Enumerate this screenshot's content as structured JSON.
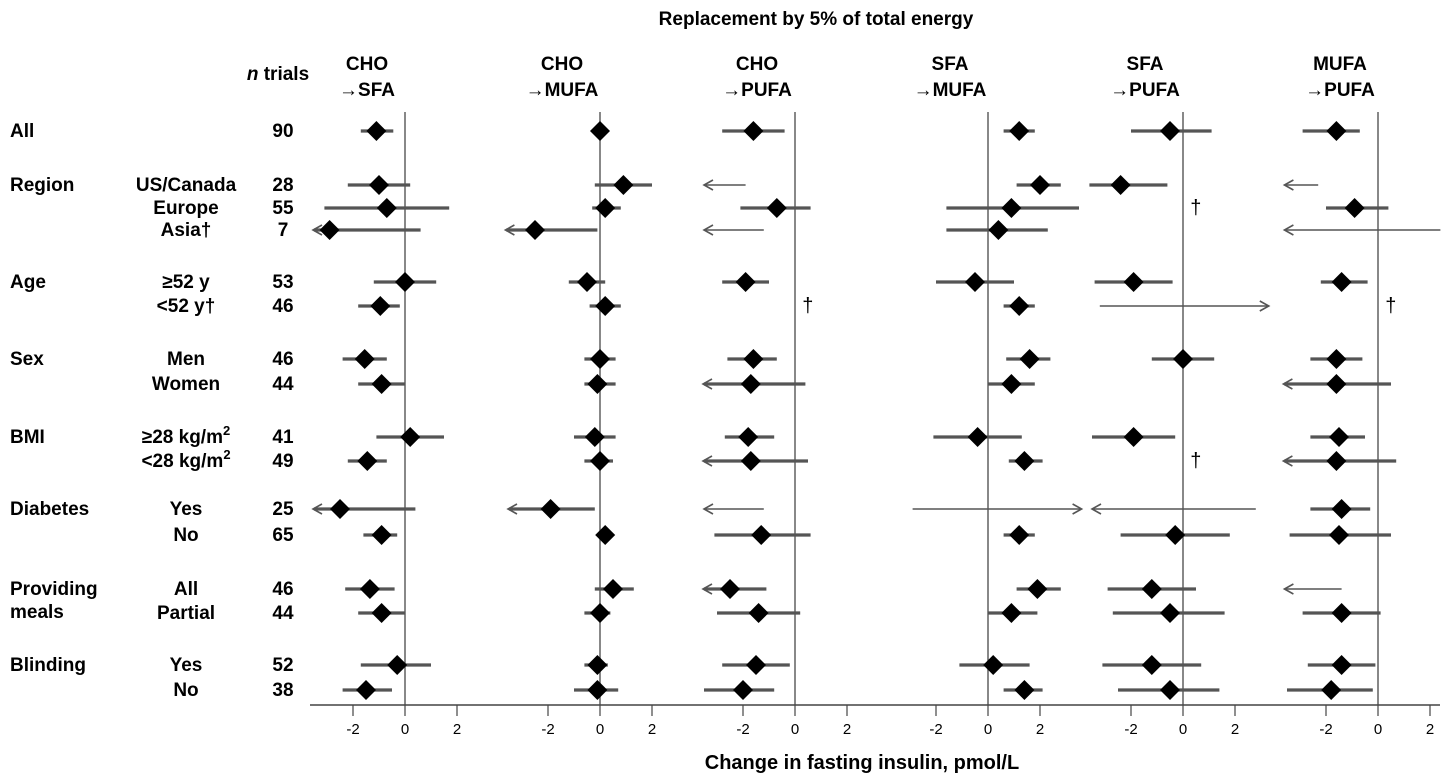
{
  "chart_data": {
    "type": "forest",
    "title": "Replacement by 5% of total energy",
    "xlabel": "Change in fasting insulin, pmol/L",
    "xticks": [
      -2,
      0,
      2
    ],
    "xlim": [
      -3.6,
      2.4
    ],
    "grid": false,
    "n_header": {
      "italic": "n",
      "rest": " trials"
    },
    "panels": [
      {
        "line1": "CHO",
        "line2": "→SFA"
      },
      {
        "line1": "CHO",
        "line2": "→MUFA"
      },
      {
        "line1": "CHO",
        "line2": "→PUFA"
      },
      {
        "line1": "SFA",
        "line2": "→MUFA"
      },
      {
        "line1": "SFA",
        "line2": "→PUFA"
      },
      {
        "line1": "MUFA",
        "line2": "→PUFA"
      }
    ],
    "groups": [
      {
        "label": "All",
        "rows": [
          {
            "sub": "",
            "sup": "",
            "n": "90",
            "est": [
              {
                "e": -1.1,
                "lo": -1.7,
                "hi": -0.45
              },
              {
                "e": 0.0,
                "lo": -0.2,
                "hi": 0.2
              },
              {
                "e": -1.6,
                "lo": -2.8,
                "hi": -0.4
              },
              {
                "e": 1.2,
                "lo": 0.6,
                "hi": 1.8
              },
              {
                "e": -0.5,
                "lo": -2.0,
                "hi": 1.1
              },
              {
                "e": -1.6,
                "lo": -2.9,
                "hi": -0.7
              }
            ]
          }
        ]
      },
      {
        "label": "Region",
        "rows": [
          {
            "sub": "US/Canada",
            "sup": "",
            "n": "28",
            "est": [
              {
                "e": -1.0,
                "lo": -2.2,
                "hi": 0.2
              },
              {
                "e": 0.9,
                "lo": -0.2,
                "hi": 2.0
              },
              {
                "arrow": "left",
                "from": -1.9,
                "to": -3.5
              },
              {
                "e": 2.0,
                "lo": 1.1,
                "hi": 2.8
              },
              {
                "e": -2.4,
                "lo": -3.6,
                "hi": -0.6
              },
              {
                "arrow": "left",
                "from": -2.3,
                "to": -3.6
              }
            ]
          },
          {
            "sub": "Europe",
            "sup": "",
            "n": "55",
            "est": [
              {
                "e": -0.7,
                "lo": -3.1,
                "hi": 1.7
              },
              {
                "e": 0.2,
                "lo": -0.3,
                "hi": 0.8
              },
              {
                "e": -0.7,
                "lo": -2.1,
                "hi": 0.6
              },
              {
                "e": 0.9,
                "lo": -1.6,
                "hi": 3.5
              },
              {
                "dagger": 0.3
              },
              {
                "e": -0.9,
                "lo": -2.0,
                "hi": 0.4
              }
            ]
          },
          {
            "sub": "Asia",
            "sup": "",
            "dagger": true,
            "n": "7",
            "est": [
              {
                "e": -2.9,
                "lo": -3.5,
                "hi": 0.6,
                "arrowLeft": true
              },
              {
                "e": -2.5,
                "lo": -3.6,
                "hi": -0.1,
                "arrowLeft": true
              },
              {
                "arrow": "left",
                "from": -1.2,
                "to": -3.5
              },
              {
                "e": 0.4,
                "lo": -1.6,
                "hi": 2.3
              },
              {
                "blank": true
              },
              {
                "arrow": "left",
                "from": 2.4,
                "to": -3.6
              }
            ]
          }
        ]
      },
      {
        "label": "Age",
        "rows": [
          {
            "sub": "≥52 y",
            "sup": "",
            "n": "53",
            "est": [
              {
                "e": 0.0,
                "lo": -1.2,
                "hi": 1.2
              },
              {
                "e": -0.5,
                "lo": -1.2,
                "hi": 0.2
              },
              {
                "e": -1.9,
                "lo": -2.8,
                "hi": -1.0
              },
              {
                "e": -0.5,
                "lo": -2.0,
                "hi": 1.0
              },
              {
                "e": -1.9,
                "lo": -3.4,
                "hi": -0.4
              },
              {
                "e": -1.4,
                "lo": -2.2,
                "hi": -0.4
              }
            ]
          },
          {
            "sub": "<52 y",
            "sup": "",
            "dagger": true,
            "n": "46",
            "est": [
              {
                "e": -0.95,
                "lo": -1.8,
                "hi": -0.2
              },
              {
                "e": 0.2,
                "lo": -0.4,
                "hi": 0.8
              },
              {
                "dagger": 0.3
              },
              {
                "e": 1.2,
                "lo": 0.6,
                "hi": 1.8
              },
              {
                "arrow": "right",
                "from": -3.2,
                "to": 3.3
              },
              {
                "dagger": 0.3
              }
            ]
          }
        ]
      },
      {
        "label": "Sex",
        "rows": [
          {
            "sub": "Men",
            "sup": "",
            "n": "46",
            "est": [
              {
                "e": -1.55,
                "lo": -2.4,
                "hi": -0.7
              },
              {
                "e": 0.0,
                "lo": -0.6,
                "hi": 0.6
              },
              {
                "e": -1.6,
                "lo": -2.6,
                "hi": -0.7
              },
              {
                "e": 1.6,
                "lo": 0.7,
                "hi": 2.4
              },
              {
                "e": 0.0,
                "lo": -1.2,
                "hi": 1.2
              },
              {
                "e": -1.6,
                "lo": -2.6,
                "hi": -0.6
              }
            ]
          },
          {
            "sub": "Women",
            "sup": "",
            "n": "44",
            "est": [
              {
                "e": -0.9,
                "lo": -1.8,
                "hi": 0.0
              },
              {
                "e": -0.1,
                "lo": -0.6,
                "hi": 0.6
              },
              {
                "e": -1.7,
                "lo": -3.5,
                "hi": 0.4,
                "arrowLeft": true
              },
              {
                "e": 0.9,
                "lo": 0.0,
                "hi": 1.8
              },
              {
                "blank": true
              },
              {
                "e": -1.6,
                "lo": -3.6,
                "hi": 0.5,
                "arrowLeft": true
              }
            ]
          }
        ]
      },
      {
        "label": "BMI",
        "rows": [
          {
            "sub": "≥28 kg/m",
            "sup": "2",
            "n": "41",
            "est": [
              {
                "e": 0.2,
                "lo": -1.1,
                "hi": 1.5
              },
              {
                "e": -0.2,
                "lo": -1.0,
                "hi": 0.6
              },
              {
                "e": -1.8,
                "lo": -2.7,
                "hi": -0.8
              },
              {
                "e": -0.4,
                "lo": -2.1,
                "hi": 1.3
              },
              {
                "e": -1.9,
                "lo": -3.5,
                "hi": -0.3
              },
              {
                "e": -1.5,
                "lo": -2.6,
                "hi": -0.5
              }
            ]
          },
          {
            "sub": "<28 kg/m",
            "sup": "2",
            "n": "49",
            "est": [
              {
                "e": -1.45,
                "lo": -2.2,
                "hi": -0.7
              },
              {
                "e": 0.0,
                "lo": -0.6,
                "hi": 0.5
              },
              {
                "e": -1.7,
                "lo": -3.5,
                "hi": 0.5,
                "arrowLeft": true
              },
              {
                "e": 1.4,
                "lo": 0.8,
                "hi": 2.1
              },
              {
                "dagger": 0.3
              },
              {
                "e": -1.6,
                "lo": -3.6,
                "hi": 0.7,
                "arrowLeft": true
              }
            ]
          }
        ]
      },
      {
        "label": "Diabetes",
        "rows": [
          {
            "sub": "Yes",
            "sup": "",
            "n": "25",
            "est": [
              {
                "e": -2.5,
                "lo": -3.5,
                "hi": 0.4,
                "arrowLeft": true
              },
              {
                "e": -1.9,
                "lo": -3.5,
                "hi": -0.2,
                "arrowLeft": true
              },
              {
                "arrow": "left",
                "from": -1.2,
                "to": -3.5
              },
              {
                "arrow": "right",
                "from": -2.9,
                "to": 3.6
              },
              {
                "arrow": "left",
                "from": 2.8,
                "to": -3.5
              },
              {
                "e": -1.4,
                "lo": -2.6,
                "hi": -0.3
              }
            ]
          },
          {
            "sub": "No",
            "sup": "",
            "n": "65",
            "est": [
              {
                "e": -0.9,
                "lo": -1.6,
                "hi": -0.3
              },
              {
                "e": 0.2,
                "lo": -0.1,
                "hi": 0.4
              },
              {
                "e": -1.3,
                "lo": -3.1,
                "hi": 0.6
              },
              {
                "e": 1.2,
                "lo": 0.6,
                "hi": 1.8
              },
              {
                "e": -0.3,
                "lo": -2.4,
                "hi": 1.8
              },
              {
                "e": -1.5,
                "lo": -3.4,
                "hi": 0.5
              }
            ]
          }
        ]
      },
      {
        "label": "Providing\nmeals",
        "rows": [
          {
            "sub": "All",
            "sup": "",
            "n": "46",
            "est": [
              {
                "e": -1.35,
                "lo": -2.3,
                "hi": -0.4
              },
              {
                "e": 0.5,
                "lo": -0.2,
                "hi": 1.3
              },
              {
                "e": -2.5,
                "lo": -3.5,
                "hi": -1.1,
                "arrowLeft": true
              },
              {
                "e": 1.9,
                "lo": 1.1,
                "hi": 2.8
              },
              {
                "e": -1.2,
                "lo": -2.9,
                "hi": 0.5
              },
              {
                "arrow": "left",
                "from": -1.4,
                "to": -3.6
              }
            ]
          },
          {
            "sub": "Partial",
            "sup": "",
            "n": "44",
            "est": [
              {
                "e": -0.9,
                "lo": -1.8,
                "hi": 0.0
              },
              {
                "e": 0.0,
                "lo": -0.6,
                "hi": 0.4
              },
              {
                "e": -1.4,
                "lo": -3.0,
                "hi": 0.2
              },
              {
                "e": 0.9,
                "lo": 0.0,
                "hi": 1.9
              },
              {
                "e": -0.5,
                "lo": -2.7,
                "hi": 1.6
              },
              {
                "e": -1.4,
                "lo": -2.9,
                "hi": 0.1
              }
            ]
          }
        ]
      },
      {
        "label": "Blinding",
        "rows": [
          {
            "sub": "Yes",
            "sup": "",
            "n": "52",
            "est": [
              {
                "e": -0.3,
                "lo": -1.7,
                "hi": 1.0
              },
              {
                "e": -0.1,
                "lo": -0.6,
                "hi": 0.3
              },
              {
                "e": -1.5,
                "lo": -2.8,
                "hi": -0.2
              },
              {
                "e": 0.2,
                "lo": -1.1,
                "hi": 1.6
              },
              {
                "e": -1.2,
                "lo": -3.1,
                "hi": 0.7
              },
              {
                "e": -1.4,
                "lo": -2.7,
                "hi": -0.1
              }
            ]
          },
          {
            "sub": "No",
            "sup": "",
            "n": "38",
            "est": [
              {
                "e": -1.5,
                "lo": -2.4,
                "hi": -0.5
              },
              {
                "e": -0.1,
                "lo": -1.0,
                "hi": 0.7
              },
              {
                "e": -2.0,
                "lo": -3.5,
                "hi": -0.8
              },
              {
                "e": 1.4,
                "lo": 0.6,
                "hi": 2.1
              },
              {
                "e": -0.5,
                "lo": -2.5,
                "hi": 1.4
              },
              {
                "e": -1.8,
                "lo": -3.5,
                "hi": -0.2
              }
            ]
          }
        ]
      }
    ]
  }
}
